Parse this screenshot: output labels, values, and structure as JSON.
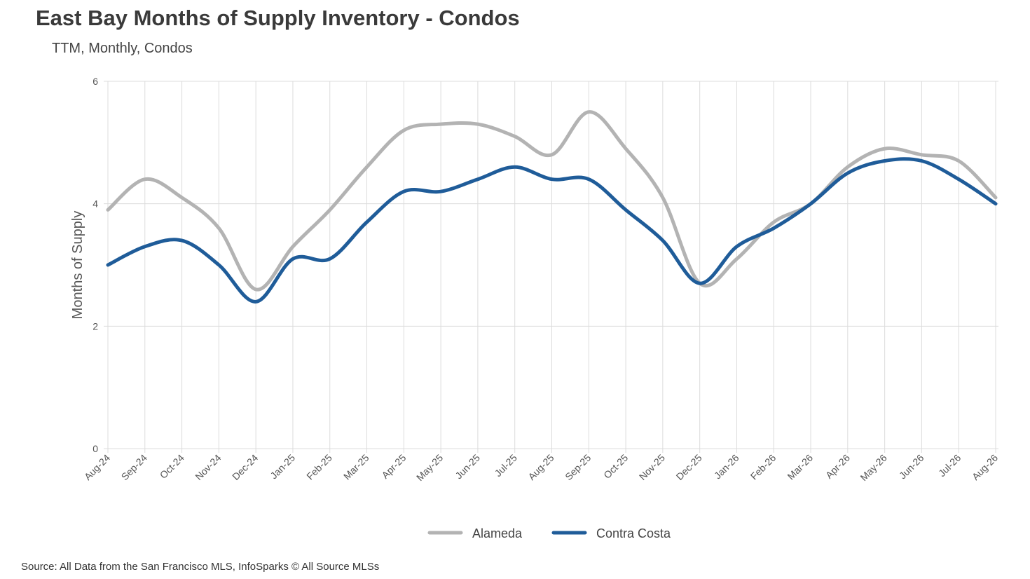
{
  "header": {
    "title": "East Bay Months of Supply Inventory - Condos",
    "subtitle": "TTM, Monthly, Condos"
  },
  "footer": {
    "source": "Source: All Data from the San Francisco MLS, InfoSparks © All Source MLSs"
  },
  "colors": {
    "alameda": "#b3b3b3",
    "contra_costa": "#1f5c99",
    "grid": "#dcdcdc"
  },
  "chart_data": {
    "type": "line",
    "title": "East Bay Months of Supply Inventory - Condos",
    "subtitle": "TTM, Monthly, Condos",
    "xlabel": "",
    "ylabel": "Months of Supply",
    "ylim": [
      0,
      6
    ],
    "yticks": [
      "0",
      "2",
      "4",
      "6"
    ],
    "grid": true,
    "legend_position": "bottom-center",
    "categories": [
      "Aug-24",
      "Sep-24",
      "Oct-24",
      "Nov-24",
      "Dec-24",
      "Jan-25",
      "Feb-25",
      "Mar-25",
      "Apr-25",
      "May-25",
      "Jun-25",
      "Jul-25",
      "Aug-25",
      "Sep-25",
      "Oct-25",
      "Nov-25",
      "Dec-25",
      "Jan-26",
      "Feb-26",
      "Mar-26",
      "Apr-26",
      "May-26",
      "Jun-26",
      "Jul-26",
      "Aug-26"
    ],
    "series": [
      {
        "name": "Alameda",
        "color": "#b3b3b3",
        "values": [
          3.9,
          4.4,
          4.1,
          3.6,
          2.6,
          3.3,
          3.9,
          4.6,
          5.2,
          5.3,
          5.3,
          5.1,
          4.8,
          5.5,
          4.9,
          4.1,
          2.7,
          3.1,
          3.7,
          4.0,
          4.6,
          4.9,
          4.8,
          4.7,
          4.1
        ]
      },
      {
        "name": "Contra Costa",
        "color": "#1f5c99",
        "values": [
          3.0,
          3.3,
          3.4,
          3.0,
          2.4,
          3.1,
          3.1,
          3.7,
          4.2,
          4.2,
          4.4,
          4.6,
          4.4,
          4.4,
          3.9,
          3.4,
          2.7,
          3.3,
          3.6,
          4.0,
          4.5,
          4.7,
          4.7,
          4.4,
          4.0
        ]
      }
    ]
  }
}
